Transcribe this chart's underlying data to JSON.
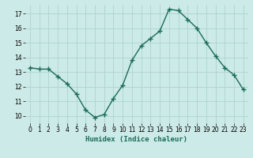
{
  "x": [
    0,
    1,
    2,
    3,
    4,
    5,
    6,
    7,
    8,
    9,
    10,
    11,
    12,
    13,
    14,
    15,
    16,
    17,
    18,
    19,
    20,
    21,
    22,
    23
  ],
  "y": [
    13.3,
    13.2,
    13.2,
    12.7,
    12.2,
    11.5,
    10.4,
    9.9,
    10.1,
    11.2,
    12.1,
    13.8,
    14.8,
    15.3,
    15.8,
    17.3,
    17.2,
    16.6,
    16.0,
    15.0,
    14.1,
    13.3,
    12.8,
    11.8
  ],
  "line_color": "#1a6b5a",
  "marker": "+",
  "marker_size": 4,
  "bg_color": "#cceae7",
  "grid_color": "#add4ce",
  "xlabel": "Humidex (Indice chaleur)",
  "ylim": [
    9.5,
    17.6
  ],
  "yticks": [
    10,
    11,
    12,
    13,
    14,
    15,
    16,
    17
  ],
  "xticks": [
    0,
    1,
    2,
    3,
    4,
    5,
    6,
    7,
    8,
    9,
    10,
    11,
    12,
    13,
    14,
    15,
    16,
    17,
    18,
    19,
    20,
    21,
    22,
    23
  ],
  "xlim": [
    -0.5,
    23.5
  ]
}
